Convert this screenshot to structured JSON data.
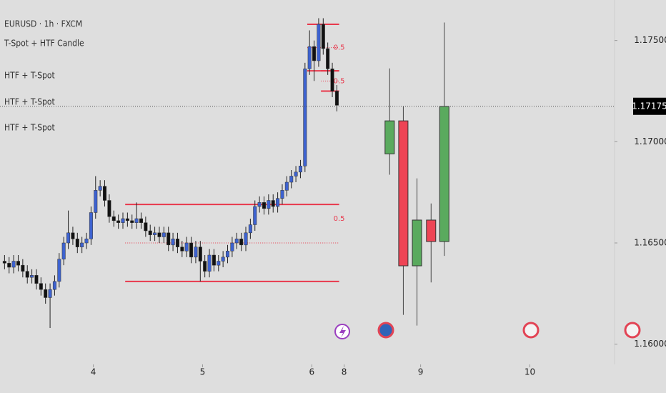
{
  "chart_data": {
    "type": "candlestick",
    "title": "EURUSD · 1h · FXCM",
    "legend_lines": [
      "T-Spot + HTF Candle",
      "HTF + T-Spot",
      "HTF + T-Spot",
      "HTF + T-Spot"
    ],
    "ylim": [
      1.159,
      1.177
    ],
    "yticks": [
      {
        "value": 1.175,
        "label": "1.17500"
      },
      {
        "value": 1.17,
        "label": "1.17000"
      },
      {
        "value": 1.165,
        "label": "1.16500"
      },
      {
        "value": 1.16,
        "label": "1.16000"
      }
    ],
    "xlim": [
      0,
      135
    ],
    "xticks": [
      {
        "value": 20.5,
        "label": "4"
      },
      {
        "value": 44.5,
        "label": "5"
      },
      {
        "value": 68.5,
        "label": "6"
      },
      {
        "value": 75.6,
        "label": "8"
      },
      {
        "value": 92.4,
        "label": "9"
      },
      {
        "value": 116.4,
        "label": "10"
      }
    ],
    "last_price": 1.17175,
    "candles": {
      "up_color": "#3d62d0",
      "down_color": "#111111",
      "x": [
        1,
        2,
        3,
        4,
        5,
        6,
        7,
        8,
        9,
        10,
        11,
        12,
        13,
        14,
        15,
        16,
        17,
        18,
        19,
        20,
        21,
        22,
        23,
        24,
        25,
        26,
        27,
        28,
        29,
        30,
        31,
        32,
        33,
        34,
        35,
        36,
        37,
        38,
        39,
        40,
        41,
        42,
        43,
        44,
        45,
        46,
        47,
        48,
        49,
        50,
        51,
        52,
        53,
        54,
        55,
        56,
        57,
        58,
        59,
        60,
        61,
        62,
        63,
        64,
        65,
        66,
        67,
        68,
        69,
        70,
        71,
        72,
        73,
        74
      ],
      "open": [
        1.1641,
        1.164,
        1.1638,
        1.1641,
        1.1639,
        1.1636,
        1.1633,
        1.1634,
        1.163,
        1.1627,
        1.1623,
        1.1627,
        1.1631,
        1.1642,
        1.165,
        1.1655,
        1.1652,
        1.1648,
        1.165,
        1.1652,
        1.1665,
        1.1676,
        1.1678,
        1.1671,
        1.1663,
        1.1661,
        1.166,
        1.1662,
        1.1661,
        1.166,
        1.1662,
        1.166,
        1.1656,
        1.1654,
        1.1655,
        1.1653,
        1.1655,
        1.1649,
        1.1652,
        1.1648,
        1.1646,
        1.165,
        1.1643,
        1.1648,
        1.1641,
        1.1636,
        1.1644,
        1.1639,
        1.1641,
        1.1643,
        1.1646,
        1.165,
        1.1652,
        1.1649,
        1.1655,
        1.1659,
        1.1668,
        1.167,
        1.1667,
        1.1671,
        1.1668,
        1.1672,
        1.1676,
        1.168,
        1.1683,
        1.1685,
        1.1688,
        1.1736,
        1.1747,
        1.174,
        1.1758,
        1.1746,
        1.1736,
        1.1725
      ],
      "high": [
        1.1644,
        1.1643,
        1.1644,
        1.1644,
        1.1642,
        1.1639,
        1.1637,
        1.1637,
        1.1633,
        1.163,
        1.163,
        1.1634,
        1.1645,
        1.1653,
        1.1666,
        1.1658,
        1.1655,
        1.1653,
        1.1655,
        1.1668,
        1.1683,
        1.1681,
        1.1681,
        1.1674,
        1.1666,
        1.1664,
        1.1665,
        1.1665,
        1.1664,
        1.167,
        1.1665,
        1.1663,
        1.1659,
        1.1658,
        1.1658,
        1.1658,
        1.1658,
        1.1655,
        1.1655,
        1.1651,
        1.1653,
        1.1653,
        1.1651,
        1.1651,
        1.1644,
        1.1647,
        1.1647,
        1.1644,
        1.1646,
        1.1649,
        1.1653,
        1.1655,
        1.1655,
        1.1658,
        1.1662,
        1.1671,
        1.1673,
        1.1673,
        1.1674,
        1.1674,
        1.1675,
        1.1679,
        1.1683,
        1.1686,
        1.1688,
        1.1691,
        1.1739,
        1.1755,
        1.175,
        1.1761,
        1.1761,
        1.1749,
        1.1739,
        1.1728
      ],
      "low": [
        1.1637,
        1.1635,
        1.1635,
        1.1636,
        1.1633,
        1.163,
        1.163,
        1.1627,
        1.1624,
        1.162,
        1.1608,
        1.1624,
        1.1628,
        1.1639,
        1.1647,
        1.1649,
        1.1645,
        1.1645,
        1.1647,
        1.1649,
        1.1662,
        1.1673,
        1.1668,
        1.166,
        1.1658,
        1.1657,
        1.1657,
        1.1658,
        1.1657,
        1.1657,
        1.1657,
        1.1653,
        1.1651,
        1.1651,
        1.165,
        1.165,
        1.1646,
        1.1646,
        1.1645,
        1.1643,
        1.1643,
        1.164,
        1.164,
        1.1631,
        1.1633,
        1.1633,
        1.1636,
        1.1636,
        1.1638,
        1.164,
        1.1643,
        1.1647,
        1.1646,
        1.1646,
        1.1652,
        1.1656,
        1.1665,
        1.1664,
        1.1664,
        1.1665,
        1.1665,
        1.1669,
        1.1673,
        1.1677,
        1.168,
        1.1682,
        1.1685,
        1.1733,
        1.173,
        1.1737,
        1.1743,
        1.1733,
        1.1722,
        1.1715
      ],
      "close": [
        1.164,
        1.1638,
        1.1641,
        1.1639,
        1.1636,
        1.1633,
        1.1634,
        1.163,
        1.1627,
        1.1623,
        1.1627,
        1.1631,
        1.1642,
        1.165,
        1.1655,
        1.1652,
        1.1648,
        1.165,
        1.1652,
        1.1665,
        1.1676,
        1.1678,
        1.1671,
        1.1663,
        1.1661,
        1.166,
        1.1662,
        1.1661,
        1.166,
        1.1662,
        1.166,
        1.1656,
        1.1654,
        1.1655,
        1.1653,
        1.1655,
        1.1649,
        1.1652,
        1.1648,
        1.1646,
        1.165,
        1.1643,
        1.1648,
        1.1641,
        1.1636,
        1.1644,
        1.1639,
        1.1641,
        1.1643,
        1.1646,
        1.165,
        1.1652,
        1.1649,
        1.1655,
        1.1659,
        1.1668,
        1.167,
        1.1667,
        1.1671,
        1.1668,
        1.1672,
        1.1676,
        1.168,
        1.1683,
        1.1685,
        1.1688,
        1.1736,
        1.1747,
        1.174,
        1.1758,
        1.1746,
        1.1736,
        1.1725,
        1.1718
      ]
    },
    "htf_candles": {
      "up_color": "#5aaa5e",
      "down_color": "#ee4455",
      "x": [
        85.6,
        88.6,
        91.6,
        94.7,
        97.6
      ],
      "open": [
        1.1694,
        1.17103,
        1.16387,
        1.16613,
        1.16507
      ],
      "high": [
        1.17362,
        1.17174,
        1.16819,
        1.16695,
        1.17589
      ],
      "low": [
        1.16837,
        1.16145,
        1.16092,
        1.16305,
        1.16436
      ],
      "close": [
        1.17103,
        1.16387,
        1.16613,
        1.16507,
        1.17174
      ]
    },
    "zones": [
      {
        "top": 1.1669,
        "bottom": 1.1631,
        "x0": 27.5,
        "x1": 74.5,
        "label": "0.5"
      },
      {
        "top": 1.1758,
        "bottom": 1.1735,
        "x0": 67.5,
        "x1": 74.5,
        "label": "0.5"
      },
      {
        "top": 1.1735,
        "bottom": 1.1725,
        "x0": 70.5,
        "x1": 74.5,
        "label": "0.5"
      }
    ],
    "zone_color": "#e8384c"
  }
}
